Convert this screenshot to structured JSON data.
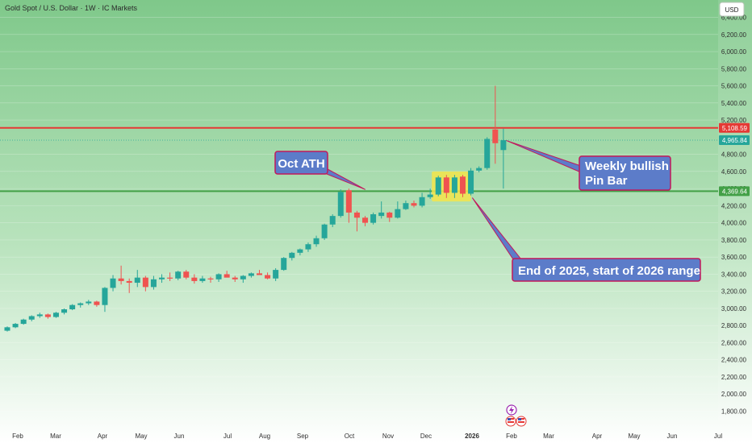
{
  "header": {
    "title": "Gold Spot / U.S. Dollar · 1W · IC Markets",
    "currency_button": "USD"
  },
  "colors": {
    "up": "#26a69a",
    "down": "#ef5350",
    "resistance": "#e53935",
    "support": "#43a047",
    "callout_bg": "#5c7cc9",
    "callout_border": "#c2185b",
    "highlight": "#f5e54a"
  },
  "price_tags": {
    "resistance": "5,108.59",
    "current": "4,965.84",
    "support": "4,369.64"
  },
  "annotations": {
    "oct_ath": "Oct ATH",
    "pin_bar_line1": "Weekly bullish",
    "pin_bar_line2": "Pin Bar",
    "range": "End of 2025, start of 2026 range"
  },
  "events": {
    "event_icon": "lightning-icon",
    "flag_icon": "us-flag-icon"
  },
  "chart_data": {
    "type": "candlestick",
    "y_ticks": [
      1800,
      2000,
      2200,
      2400,
      2600,
      2800,
      3000,
      3200,
      3400,
      3600,
      3800,
      4000,
      4200,
      4400,
      4600,
      4800,
      5200,
      5400,
      5600,
      5800,
      6000,
      6200,
      6400
    ],
    "x_labels": [
      "Feb",
      "Mar",
      "Apr",
      "May",
      "Jun",
      "Jul",
      "Aug",
      "Sep",
      "Oct",
      "Nov",
      "Dec",
      "2026",
      "Feb",
      "Mar",
      "Apr",
      "May",
      "Jun",
      "Jul"
    ],
    "levels": {
      "resistance": 5108.59,
      "current": 4965.84,
      "support": 4369.64
    },
    "candles": [
      [
        2740,
        2790,
        2730,
        2780
      ],
      [
        2780,
        2830,
        2770,
        2820
      ],
      [
        2820,
        2880,
        2810,
        2870
      ],
      [
        2870,
        2920,
        2850,
        2910
      ],
      [
        2910,
        2950,
        2890,
        2930
      ],
      [
        2930,
        2940,
        2880,
        2900
      ],
      [
        2900,
        2960,
        2890,
        2950
      ],
      [
        2950,
        3000,
        2930,
        2990
      ],
      [
        2990,
        3050,
        2980,
        3040
      ],
      [
        3040,
        3070,
        3010,
        3060
      ],
      [
        3060,
        3100,
        3040,
        3080
      ],
      [
        3080,
        3090,
        3020,
        3040
      ],
      [
        3040,
        3250,
        2960,
        3240
      ],
      [
        3240,
        3390,
        3200,
        3350
      ],
      [
        3350,
        3500,
        3280,
        3320
      ],
      [
        3320,
        3350,
        3180,
        3300
      ],
      [
        3300,
        3450,
        3250,
        3360
      ],
      [
        3360,
        3380,
        3200,
        3250
      ],
      [
        3250,
        3380,
        3220,
        3340
      ],
      [
        3340,
        3400,
        3300,
        3360
      ],
      [
        3360,
        3420,
        3320,
        3350
      ],
      [
        3350,
        3440,
        3330,
        3430
      ],
      [
        3430,
        3450,
        3340,
        3360
      ],
      [
        3360,
        3400,
        3290,
        3320
      ],
      [
        3320,
        3380,
        3300,
        3350
      ],
      [
        3350,
        3370,
        3300,
        3340
      ],
      [
        3340,
        3410,
        3310,
        3400
      ],
      [
        3400,
        3440,
        3380,
        3360
      ],
      [
        3360,
        3380,
        3310,
        3340
      ],
      [
        3340,
        3390,
        3300,
        3380
      ],
      [
        3380,
        3420,
        3360,
        3410
      ],
      [
        3410,
        3450,
        3390,
        3390
      ],
      [
        3390,
        3420,
        3340,
        3350
      ],
      [
        3350,
        3470,
        3320,
        3450
      ],
      [
        3450,
        3600,
        3440,
        3590
      ],
      [
        3590,
        3660,
        3560,
        3650
      ],
      [
        3650,
        3700,
        3620,
        3690
      ],
      [
        3690,
        3770,
        3660,
        3750
      ],
      [
        3750,
        3850,
        3720,
        3820
      ],
      [
        3820,
        3990,
        3800,
        3980
      ],
      [
        3980,
        4100,
        3950,
        4080
      ],
      [
        4080,
        4390,
        4060,
        4360
      ],
      [
        4380,
        4400,
        4000,
        4120
      ],
      [
        4120,
        4140,
        3900,
        4060
      ],
      [
        4060,
        4080,
        3960,
        4000
      ],
      [
        4000,
        4120,
        3980,
        4100
      ],
      [
        4080,
        4250,
        4050,
        4120
      ],
      [
        4120,
        4130,
        4010,
        4060
      ],
      [
        4060,
        4250,
        4050,
        4160
      ],
      [
        4160,
        4260,
        4150,
        4230
      ],
      [
        4230,
        4260,
        4180,
        4200
      ],
      [
        4200,
        4350,
        4180,
        4300
      ],
      [
        4300,
        4400,
        4280,
        4330
      ],
      [
        4330,
        4550,
        4310,
        4530
      ],
      [
        4530,
        4560,
        4290,
        4350
      ],
      [
        4350,
        4560,
        4290,
        4530
      ],
      [
        4540,
        4560,
        4300,
        4340
      ],
      [
        4340,
        4640,
        4320,
        4610
      ],
      [
        4610,
        4660,
        4590,
        4640
      ],
      [
        4640,
        5000,
        4620,
        4980
      ],
      [
        5090,
        5600,
        4690,
        4930
      ],
      [
        4850,
        5100,
        4400,
        4965
      ]
    ]
  }
}
